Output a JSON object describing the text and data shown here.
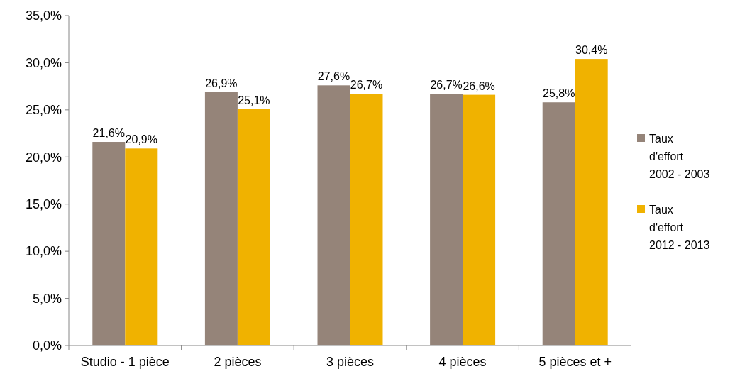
{
  "chart_data": {
    "type": "bar",
    "categories": [
      "Studio - 1 pièce",
      "2 pièces",
      "3 pièces",
      "4 pièces",
      "5 pièces et +"
    ],
    "series": [
      {
        "name": "Taux d'effort 2002 - 2003",
        "color": "#958479",
        "values": [
          21.6,
          26.9,
          27.6,
          26.7,
          25.8
        ],
        "value_labels": [
          "21,6%",
          "26,9%",
          "27,6%",
          "26,7%",
          "25,8%"
        ]
      },
      {
        "name": "Taux d'effort 2012 - 2013",
        "color": "#f0b200",
        "values": [
          20.9,
          25.1,
          26.7,
          26.6,
          30.4
        ],
        "value_labels": [
          "20,9%",
          "25,1%",
          "26,7%",
          "26,6%",
          "30,4%"
        ]
      }
    ],
    "ylim": [
      0,
      35
    ],
    "yticks": [
      {
        "value": 0,
        "label": "0,0%"
      },
      {
        "value": 5,
        "label": "5,0%"
      },
      {
        "value": 10,
        "label": "10,0%"
      },
      {
        "value": 15,
        "label": "15,0%"
      },
      {
        "value": 20,
        "label": "20,0%"
      },
      {
        "value": 25,
        "label": "25,0%"
      },
      {
        "value": 30,
        "label": "30,0%"
      },
      {
        "value": 35,
        "label": "35,0%"
      }
    ],
    "legend": "right"
  }
}
